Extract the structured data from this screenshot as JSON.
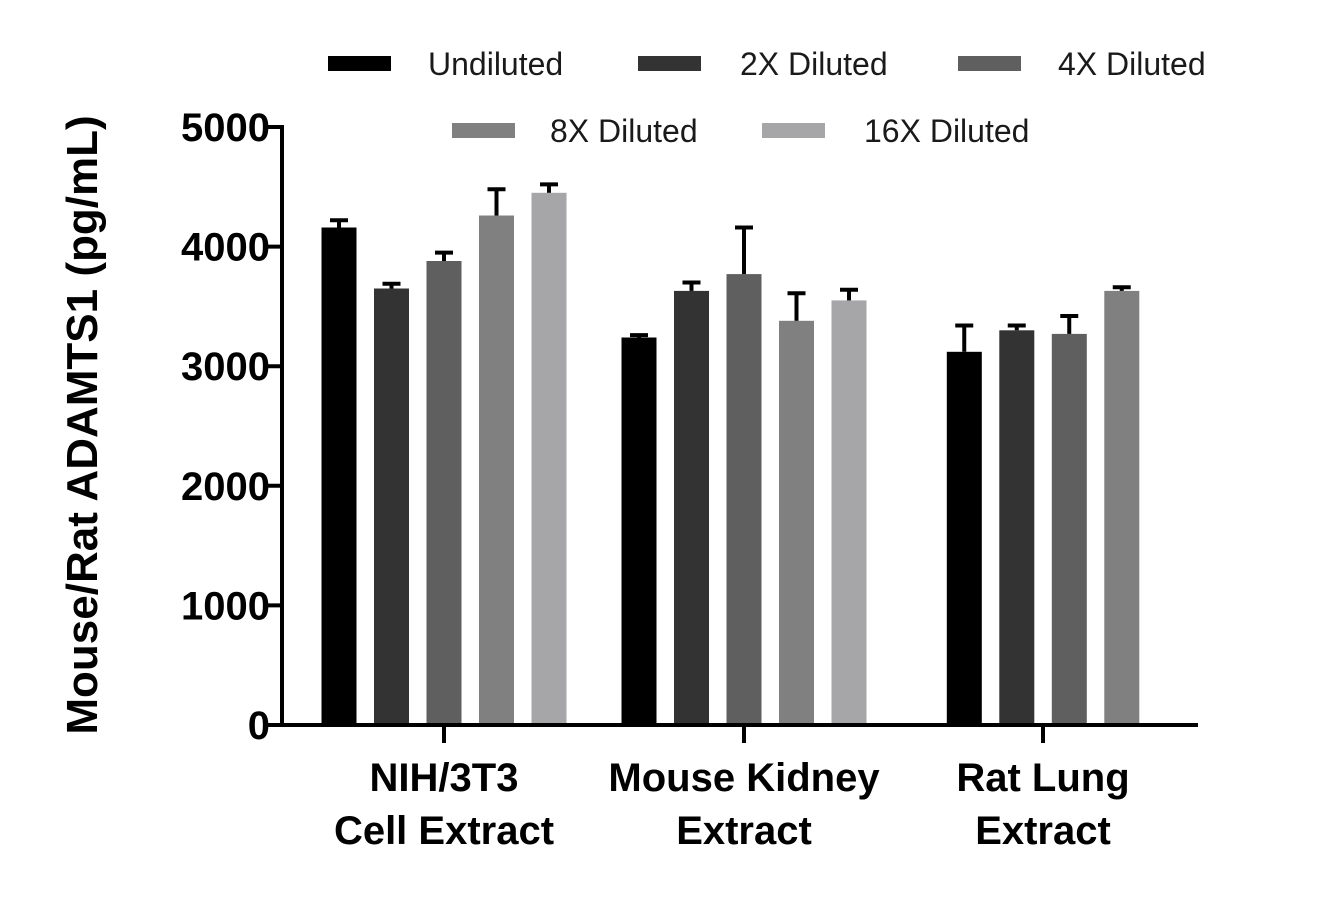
{
  "chart_data": {
    "type": "bar",
    "title": "",
    "xlabel": "",
    "ylabel": "Mouse/Rat ADAMTS1 (pg/mL)",
    "ylim": [
      0,
      5000
    ],
    "yticks": [
      0,
      1000,
      2000,
      3000,
      4000,
      5000
    ],
    "grid": false,
    "legend_position": "top",
    "categories": [
      [
        "NIH/3T3",
        "Cell Extract"
      ],
      [
        "Mouse Kidney",
        "Extract"
      ],
      [
        "Rat Lung",
        "Extract"
      ]
    ],
    "series": [
      {
        "name": "Undiluted",
        "color": "#000000",
        "values": [
          4160,
          3240,
          3120
        ],
        "errors": [
          60,
          20,
          220
        ]
      },
      {
        "name": "2X Diluted",
        "color": "#333333",
        "values": [
          3650,
          3630,
          3300
        ],
        "errors": [
          40,
          70,
          40
        ]
      },
      {
        "name": "4X Diluted",
        "color": "#5f5f5f",
        "values": [
          3880,
          3770,
          3270
        ],
        "errors": [
          70,
          390,
          150
        ]
      },
      {
        "name": "8X Diluted",
        "color": "#808080",
        "values": [
          4260,
          3380,
          3630
        ],
        "errors": [
          220,
          230,
          30
        ]
      },
      {
        "name": "16X Diluted",
        "color": "#a6a6a9",
        "values": [
          4450,
          3550,
          null
        ],
        "errors": [
          70,
          90,
          null
        ]
      }
    ]
  }
}
